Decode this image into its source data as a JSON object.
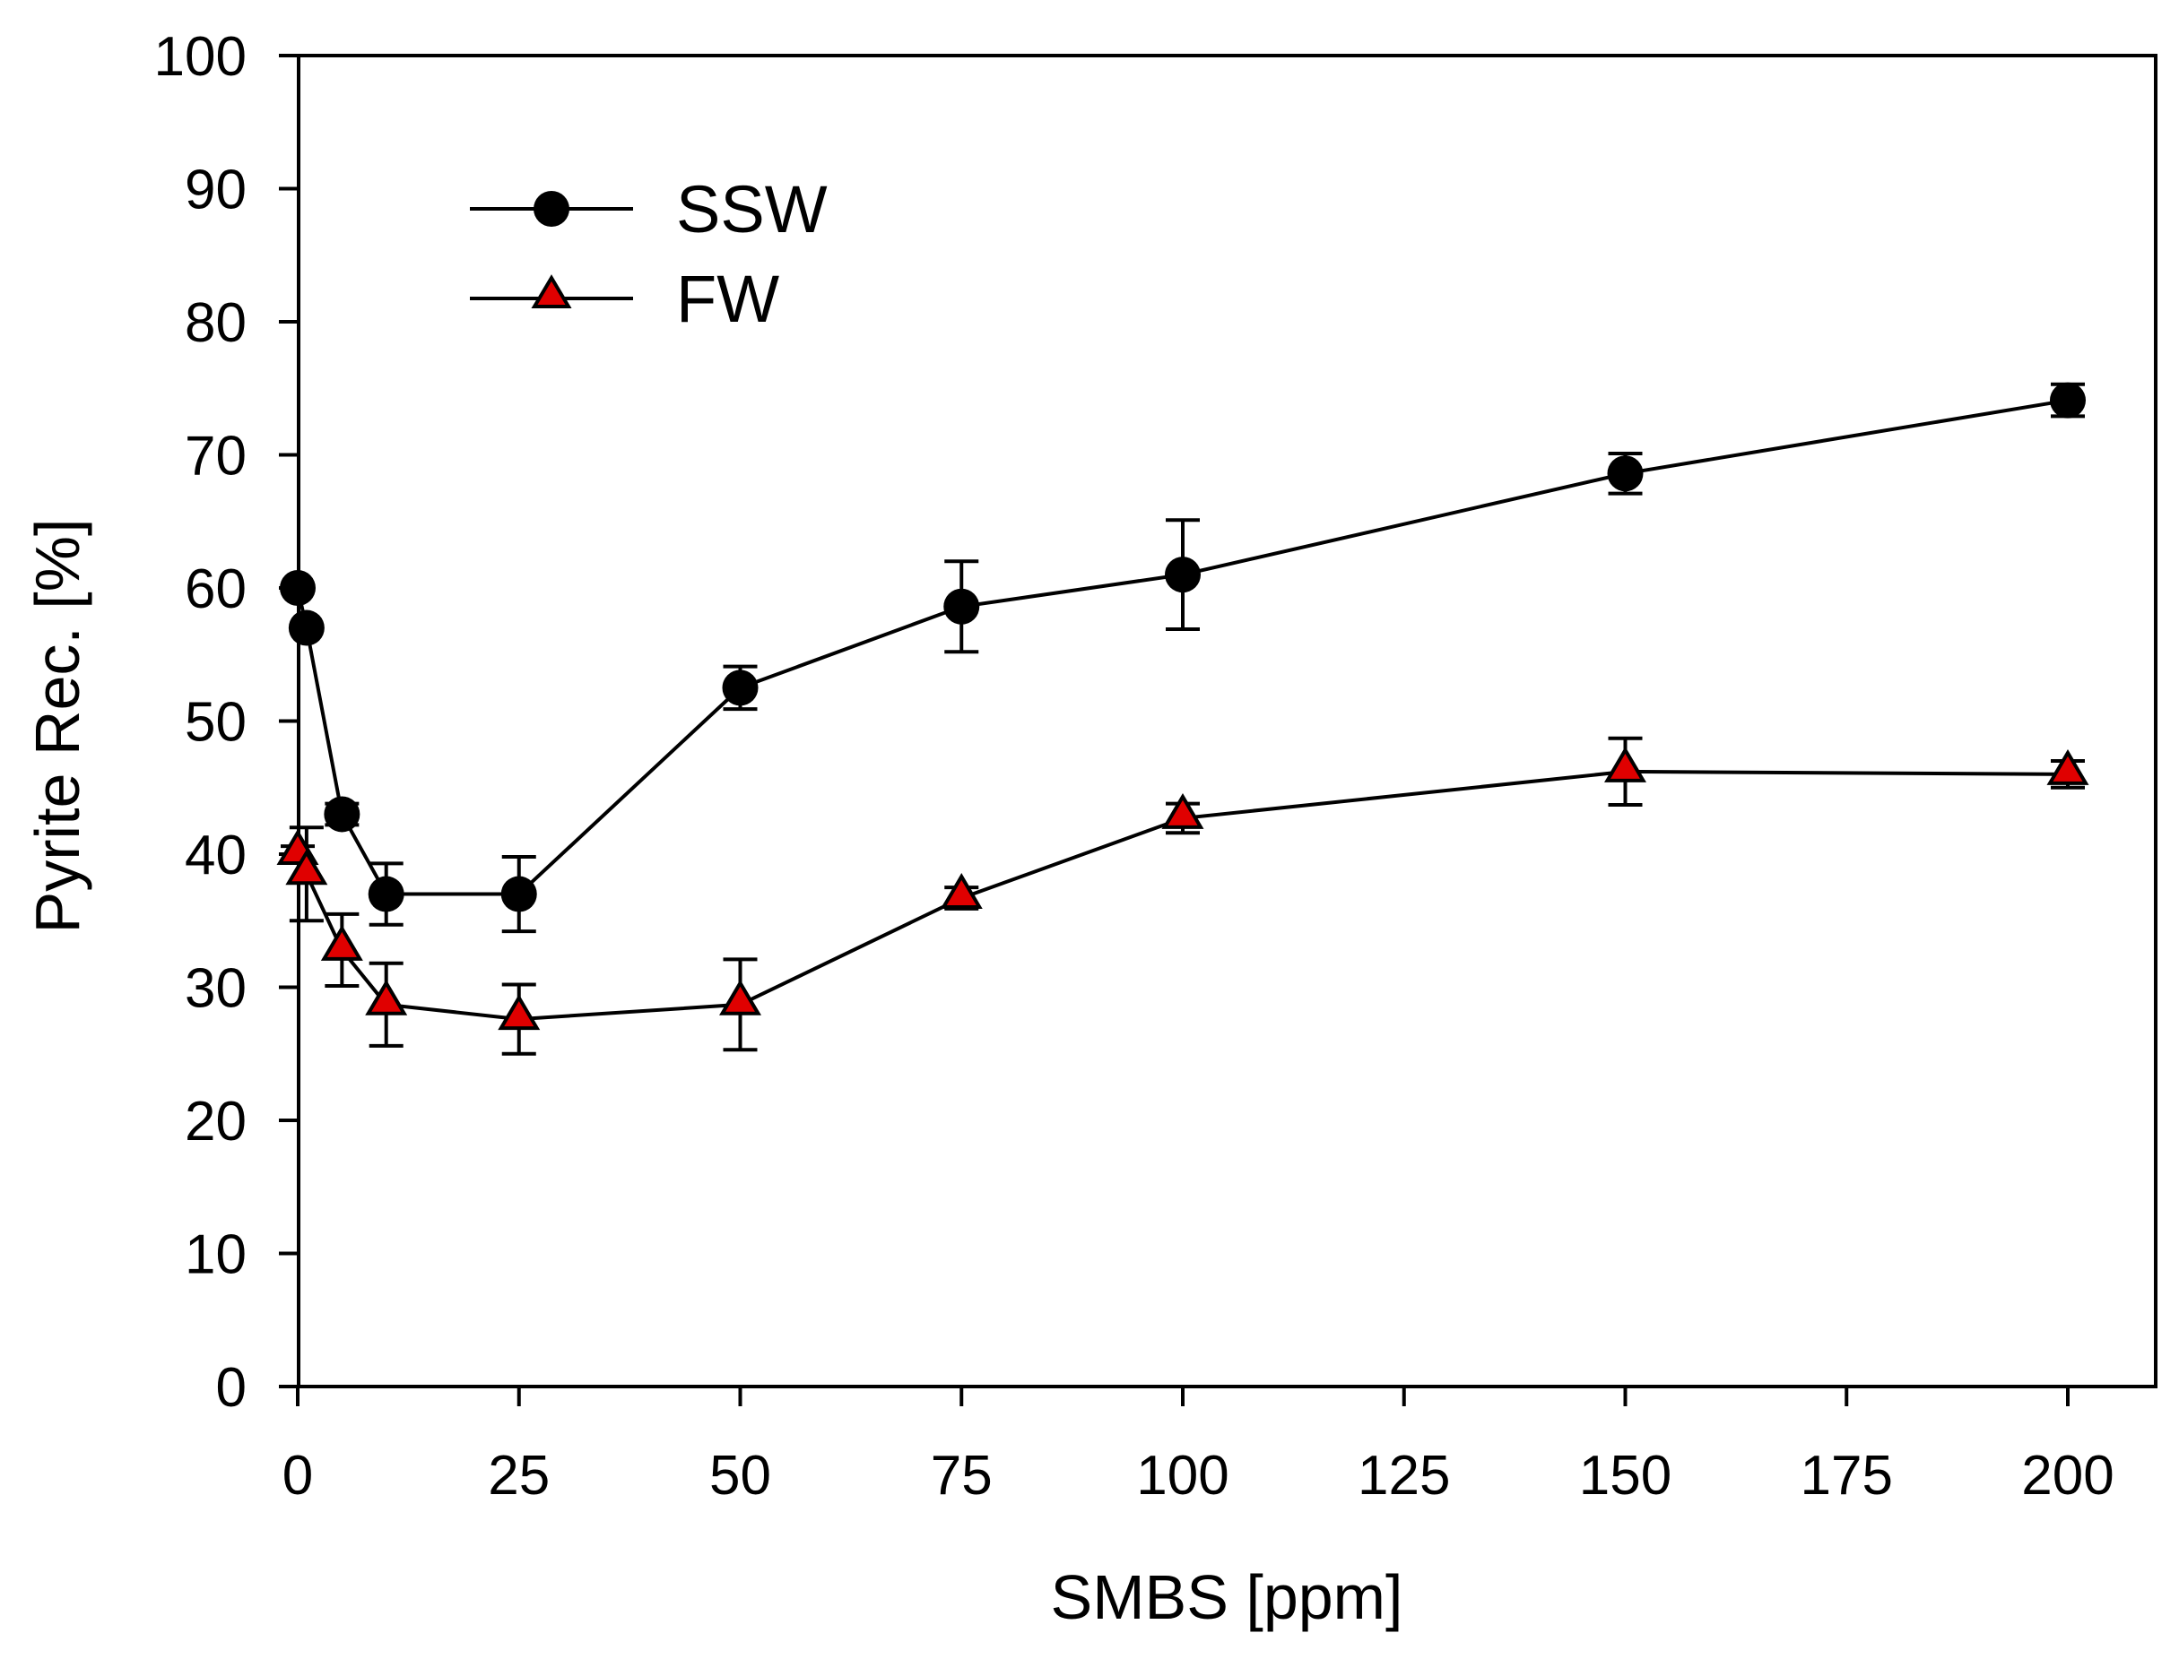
{
  "chart_data": {
    "type": "line",
    "title": "",
    "xlabel": "SMBS [ppm]",
    "ylabel": "Pyrite Rec. [%]",
    "xlim": [
      0,
      210
    ],
    "ylim": [
      0,
      100
    ],
    "x_ticks": [
      0,
      25,
      50,
      75,
      100,
      125,
      150,
      175,
      200
    ],
    "y_ticks": [
      0,
      10,
      20,
      30,
      40,
      50,
      60,
      70,
      80,
      90,
      100
    ],
    "tick_labels_x": [
      "0",
      "25",
      "50",
      "75",
      "100",
      "125",
      "150",
      "175",
      "200"
    ],
    "tick_labels_y": [
      "0",
      "10",
      "20",
      "30",
      "40",
      "50",
      "60",
      "70",
      "80",
      "90",
      "100"
    ],
    "grid": false,
    "legend_position": "top-left",
    "series": [
      {
        "name": "SSW",
        "marker": "circle",
        "color": "#000000",
        "x": [
          0,
          1,
          5,
          10,
          25,
          50,
          75,
          100,
          150,
          200
        ],
        "y": [
          60,
          57,
          43,
          37,
          37,
          52.5,
          58.6,
          61,
          68.6,
          74.1
        ],
        "err": [
          0,
          0,
          0.8,
          2.3,
          2.8,
          1.6,
          3.4,
          4.1,
          1.5,
          1.2
        ]
      },
      {
        "name": "FW",
        "marker": "triangle",
        "color": "#e00000",
        "x": [
          0,
          1,
          5,
          10,
          25,
          50,
          75,
          100,
          150,
          200
        ],
        "y": [
          40,
          38.5,
          32.8,
          28.7,
          27.6,
          28.7,
          36.7,
          42.7,
          46.2,
          46
        ],
        "err": [
          0.6,
          3.5,
          2.7,
          3.1,
          2.6,
          3.4,
          0.8,
          1.1,
          2.5,
          1
        ]
      }
    ]
  }
}
